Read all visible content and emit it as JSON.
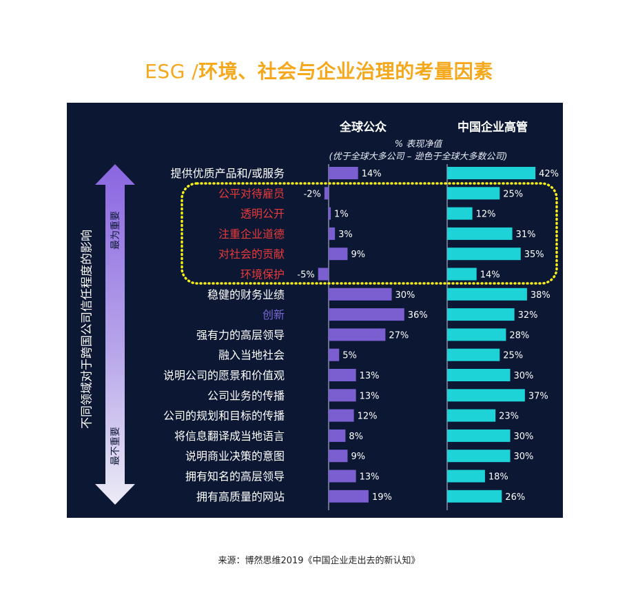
{
  "title": {
    "prefix": "ESG /",
    "main": "环境、社会与企业治理的考量因素"
  },
  "columns": {
    "left": "全球公众",
    "right": "中国企业高管"
  },
  "subtitle": {
    "line1": "% 表现净值",
    "line2": "(优于全球大多公司 – 逊色于全球大多数公司)"
  },
  "axis": {
    "vertical_label": "不同领域对于跨国公司信任程度的影响",
    "top_label": "最为重要",
    "bottom_label": "最不重要"
  },
  "footer": "来源：博然思维2019《中国企业走出去的新认知》",
  "colors": {
    "background": "#0c1833",
    "left_bar": "#7b5fd1",
    "right_bar": "#1ed3d8",
    "highlight": "#f7ef1a",
    "red_label": "#e83a3a",
    "purple_label": "#7b67d6",
    "title": "#f5a81c"
  },
  "chart_data": {
    "type": "bar",
    "orientation": "horizontal",
    "categories": [
      "提供优质产品和/或服务",
      "公平对待雇员",
      "透明公开",
      "注重企业道德",
      "对社会的贡献",
      "环境保护",
      "稳健的财务业绩",
      "创新",
      "强有力的高层领导",
      "融入当地社会",
      "说明公司的愿景和价值观",
      "公司业务的传播",
      "公司的规划和目标的传播",
      "将信息翻译成当地语言",
      "说明商业决策的意图",
      "拥有知名的高层领导",
      "拥有高质量的网站"
    ],
    "label_colors": [
      "#ffffff",
      "#e83a3a",
      "#e83a3a",
      "#e83a3a",
      "#e83a3a",
      "#e83a3a",
      "#ffffff",
      "#7b67d6",
      "#ffffff",
      "#ffffff",
      "#ffffff",
      "#ffffff",
      "#ffffff",
      "#ffffff",
      "#ffffff",
      "#ffffff",
      "#ffffff"
    ],
    "highlighted_categories": [
      "公平对待雇员",
      "透明公开",
      "注重企业道德",
      "对社会的贡献",
      "环境保护"
    ],
    "series": [
      {
        "name": "全球公众",
        "values": [
          14,
          -2,
          1,
          3,
          9,
          -5,
          30,
          36,
          27,
          5,
          13,
          13,
          12,
          8,
          9,
          13,
          19
        ]
      },
      {
        "name": "中国企业高管",
        "values": [
          42,
          25,
          12,
          31,
          35,
          14,
          38,
          32,
          28,
          25,
          30,
          37,
          23,
          30,
          30,
          18,
          26
        ]
      }
    ],
    "unit": "%"
  }
}
